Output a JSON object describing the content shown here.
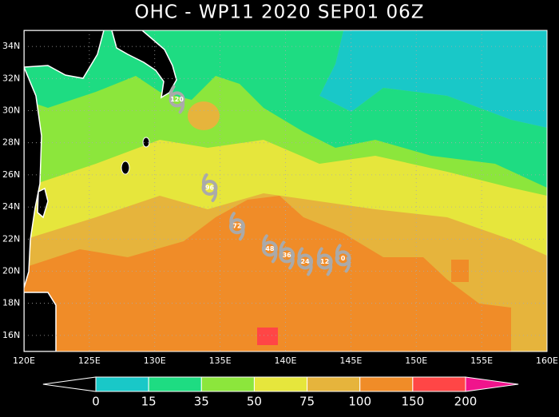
{
  "title": "OHC - WP11 2020 SEP01 06Z",
  "map": {
    "lon_range": [
      120,
      160
    ],
    "lat_range": [
      15,
      35
    ],
    "lon_ticks": [
      {
        "value": 120,
        "label": "120E"
      },
      {
        "value": 125,
        "label": "125E"
      },
      {
        "value": 130,
        "label": "130E"
      },
      {
        "value": 135,
        "label": "135E"
      },
      {
        "value": 140,
        "label": "140E"
      },
      {
        "value": 145,
        "label": "145E"
      },
      {
        "value": 150,
        "label": "150E"
      },
      {
        "value": 155,
        "label": "155E"
      },
      {
        "value": 160,
        "label": "160E"
      }
    ],
    "lat_ticks": [
      {
        "value": 16,
        "label": "16N"
      },
      {
        "value": 18,
        "label": "18N"
      },
      {
        "value": 20,
        "label": "20N"
      },
      {
        "value": 22,
        "label": "22N"
      },
      {
        "value": 24,
        "label": "24N"
      },
      {
        "value": 26,
        "label": "26N"
      },
      {
        "value": 28,
        "label": "28N"
      },
      {
        "value": 30,
        "label": "30N"
      },
      {
        "value": 32,
        "label": "32N"
      },
      {
        "value": 34,
        "label": "34N"
      }
    ],
    "track": [
      {
        "label": "0",
        "lon": 144.4,
        "lat": 20.8
      },
      {
        "label": "12",
        "lon": 143.0,
        "lat": 20.6
      },
      {
        "label": "24",
        "lon": 141.5,
        "lat": 20.6
      },
      {
        "label": "36",
        "lon": 140.1,
        "lat": 21.0
      },
      {
        "label": "48",
        "lon": 138.8,
        "lat": 21.4
      },
      {
        "label": "72",
        "lon": 136.3,
        "lat": 22.8
      },
      {
        "label": "96",
        "lon": 134.2,
        "lat": 25.2
      },
      {
        "label": "120",
        "lon": 131.7,
        "lat": 30.7
      }
    ]
  },
  "colorbar": {
    "levels": [
      0,
      15,
      35,
      50,
      75,
      100,
      150,
      200
    ],
    "colors": [
      "#000000",
      "#19c8c8",
      "#1edc82",
      "#8ce63c",
      "#e6e63c",
      "#e6b43c",
      "#f08c28",
      "#ff4646",
      "#f0148c"
    ]
  }
}
